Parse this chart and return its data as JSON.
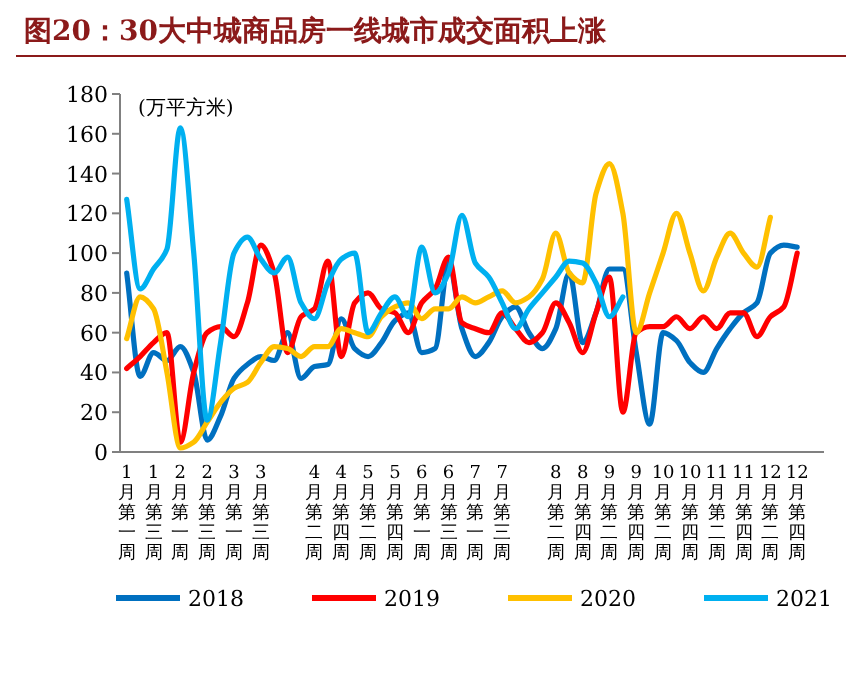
{
  "chart_data": {
    "type": "line",
    "title": "图20：30大中城商品房一线城市成交面积上涨",
    "ylabel": "(万平方米)",
    "categories": [
      "1月第一周",
      null,
      "1月第三周",
      null,
      "2月第一周",
      null,
      "2月第三周",
      null,
      "3月第一周",
      null,
      "3月第三周",
      null,
      null,
      null,
      "4月第二周",
      null,
      "4月第四周",
      null,
      "5月第二周",
      null,
      "5月第四周",
      null,
      "6月第一周",
      null,
      "6月第三周",
      null,
      "7月第一周",
      null,
      "7月第三周",
      null,
      null,
      null,
      "8月第二周",
      null,
      "8月第四周",
      null,
      "9月第二周",
      null,
      "9月第四周",
      null,
      "10月第二周",
      null,
      "10月第四周",
      null,
      "11月第二周",
      null,
      "11月第四周",
      null,
      "12月第二周",
      null,
      "12月第四周"
    ],
    "series": [
      {
        "name": "2018",
        "color": "#0070c0",
        "values": [
          90,
          38,
          50,
          46,
          53,
          40,
          6,
          18,
          37,
          44,
          48,
          46,
          60,
          37,
          43,
          44,
          67,
          52,
          48,
          55,
          66,
          70,
          50,
          52,
          95,
          62,
          48,
          55,
          68,
          73,
          60,
          52,
          62,
          90,
          55,
          70,
          92,
          92,
          50,
          14,
          60,
          56,
          45,
          40,
          52,
          62,
          70,
          75,
          100,
          104,
          103
        ]
      },
      {
        "name": "2019",
        "color": "#ff0000",
        "values": [
          42,
          48,
          55,
          60,
          5,
          40,
          60,
          63,
          58,
          75,
          104,
          90,
          50,
          68,
          72,
          96,
          48,
          75,
          80,
          72,
          70,
          60,
          75,
          82,
          98,
          65,
          62,
          60,
          70,
          62,
          55,
          60,
          75,
          65,
          50,
          70,
          88,
          20,
          60,
          63,
          63,
          68,
          62,
          68,
          62,
          70,
          70,
          58,
          68,
          73,
          100
        ]
      },
      {
        "name": "2020",
        "color": "#ffc000",
        "values": [
          57,
          78,
          72,
          40,
          2,
          5,
          15,
          25,
          32,
          35,
          45,
          53,
          52,
          48,
          53,
          53,
          62,
          60,
          58,
          68,
          73,
          75,
          67,
          72,
          72,
          78,
          75,
          78,
          81,
          75,
          78,
          87,
          110,
          90,
          85,
          130,
          145,
          120,
          60,
          80,
          100,
          120,
          100,
          81,
          98,
          110,
          100,
          93,
          118,
          null,
          null
        ]
      },
      {
        "name": "2021",
        "color": "#00b0f0",
        "values": [
          127,
          82,
          92,
          102,
          163,
          100,
          16,
          55,
          100,
          108,
          97,
          90,
          98,
          75,
          67,
          85,
          97,
          100,
          60,
          70,
          78,
          68,
          103,
          80,
          90,
          119,
          95,
          88,
          75,
          62,
          72,
          80,
          88,
          96,
          95,
          85,
          68,
          78,
          null,
          null,
          null,
          null,
          null,
          null,
          null,
          null,
          null,
          null,
          null,
          null,
          null
        ]
      }
    ],
    "ylim": [
      0,
      180
    ],
    "yticks": [
      0,
      20,
      40,
      60,
      80,
      100,
      120,
      140,
      160,
      180
    ],
    "grid": false,
    "legend": "bottom",
    "marker": "none",
    "line_style": "solid"
  }
}
